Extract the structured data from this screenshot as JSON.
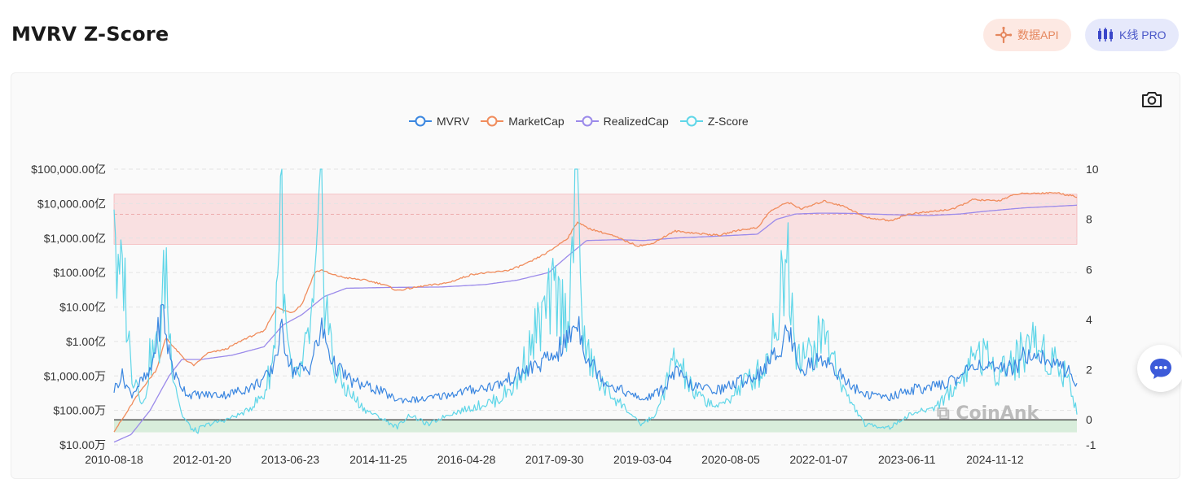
{
  "page": {
    "title": "MVRV Z-Score",
    "api_button": "数据API",
    "kline_button": "K线 PRO",
    "watermark": "CoinAnk"
  },
  "colors": {
    "mvrv": "#3a86e0",
    "marketcap": "#f08c5c",
    "realizedcap": "#9b8aea",
    "zscore": "#5fd6e8",
    "top_band": "#f8d7d8",
    "bottom_band": "#cfead3"
  },
  "icons": {
    "api": "api-plug-icon",
    "kline": "candlestick-icon",
    "camera": "camera-icon",
    "chat": "chat-bubble-icon"
  },
  "chart_data": {
    "type": "line",
    "legend": [
      "MVRV",
      "MarketCap",
      "RealizedCap",
      "Z-Score"
    ],
    "legend_position": "top-center",
    "grid": true,
    "x_ticks": [
      "2010-08-18",
      "2012-01-20",
      "2013-06-23",
      "2014-11-25",
      "2016-04-28",
      "2017-09-30",
      "2019-03-04",
      "2020-08-05",
      "2022-01-07",
      "2023-06-11",
      "2024-11-12"
    ],
    "x_range": [
      2010.63,
      2025.85
    ],
    "left_axis": {
      "scale": "log",
      "ticks": [
        "$10.00万",
        "$100.00万",
        "$1,000.00万",
        "$1.00亿",
        "$10.00亿",
        "$100.00亿",
        "$1,000.00亿",
        "$10,000.00亿",
        "$100,000.00亿"
      ],
      "range_usd": [
        100000,
        10000000000000
      ]
    },
    "right_axis": {
      "scale": "linear",
      "ticks": [
        "10",
        "8",
        "6",
        "4",
        "2",
        "0",
        "-1"
      ],
      "range": [
        -1,
        10
      ]
    },
    "bands": {
      "top": [
        7,
        9
      ],
      "top_midline": 8.2,
      "bottom": [
        -0.5,
        0
      ]
    },
    "series": [
      {
        "name": "MarketCap",
        "axis": "left",
        "x": [
          2010.63,
          2010.8,
          2010.95,
          2011.1,
          2011.3,
          2011.45,
          2011.6,
          2011.75,
          2011.9,
          2012.1,
          2012.4,
          2012.7,
          2013.0,
          2013.2,
          2013.3,
          2013.45,
          2013.6,
          2013.8,
          2013.92,
          2014.05,
          2014.3,
          2014.6,
          2014.9,
          2015.1,
          2015.5,
          2015.9,
          2016.3,
          2016.6,
          2016.9,
          2017.2,
          2017.5,
          2017.8,
          2017.96,
          2018.1,
          2018.5,
          2018.9,
          2019.1,
          2019.5,
          2019.8,
          2020.2,
          2020.5,
          2020.8,
          2021.0,
          2021.28,
          2021.5,
          2021.86,
          2022.2,
          2022.5,
          2022.9,
          2023.2,
          2023.6,
          2023.9,
          2024.2,
          2024.6,
          2024.9,
          2025.2,
          2025.5,
          2025.85
        ],
        "values": [
          250000,
          700000,
          2000000,
          5000000,
          15000000,
          130000000,
          60000000,
          30000000,
          20000000,
          45000000,
          60000000,
          120000000,
          200000000,
          1000000000,
          800000000,
          700000000,
          1200000000,
          10000000000,
          12000000000,
          9000000000,
          7000000000,
          6000000000,
          4500000000,
          3000000000,
          4000000000,
          5000000000,
          9000000000,
          10000000000,
          12000000000,
          20000000000,
          40000000000,
          100000000000,
          300000000000,
          200000000000,
          120000000000,
          60000000000,
          65000000000,
          160000000000,
          140000000000,
          120000000000,
          170000000000,
          200000000000,
          600000000000,
          1100000000000,
          700000000000,
          1200000000000,
          800000000000,
          400000000000,
          320000000000,
          500000000000,
          600000000000,
          700000000000,
          1300000000000,
          1200000000000,
          1900000000000,
          2000000000000,
          2100000000000,
          1600000000000
        ]
      },
      {
        "name": "RealizedCap",
        "axis": "left",
        "x": [
          2010.63,
          2010.9,
          2011.2,
          2011.5,
          2011.7,
          2012.0,
          2012.5,
          2013.0,
          2013.3,
          2013.6,
          2013.95,
          2014.3,
          2015.0,
          2015.8,
          2016.5,
          2017.0,
          2017.5,
          2017.8,
          2018.1,
          2018.6,
          2019.0,
          2019.5,
          2020.0,
          2020.8,
          2021.1,
          2021.4,
          2021.8,
          2022.3,
          2022.9,
          2023.5,
          2024.0,
          2024.4,
          2025.0,
          2025.85
        ],
        "values": [
          120000,
          200000,
          1000000,
          10000000,
          30000000,
          30000000,
          40000000,
          70000000,
          300000000,
          600000000,
          2000000000,
          3500000000,
          3700000000,
          3800000000,
          4500000000,
          6000000000,
          10000000000,
          30000000000,
          85000000000,
          90000000000,
          85000000000,
          100000000000,
          110000000000,
          130000000000,
          350000000000,
          500000000000,
          530000000000,
          520000000000,
          480000000000,
          450000000000,
          500000000000,
          600000000000,
          750000000000,
          900000000000
        ]
      },
      {
        "name": "MVRV",
        "axis": "right",
        "x": [
          2010.63,
          2010.75,
          2010.9,
          2011.05,
          2011.2,
          2011.4,
          2011.47,
          2011.6,
          2011.8,
          2012.0,
          2012.4,
          2012.8,
          2013.1,
          2013.28,
          2013.45,
          2013.7,
          2013.92,
          2014.1,
          2014.4,
          2014.8,
          2015.1,
          2015.5,
          2015.9,
          2016.3,
          2016.7,
          2017.1,
          2017.5,
          2017.75,
          2017.96,
          2018.1,
          2018.4,
          2018.8,
          2019.0,
          2019.3,
          2019.5,
          2019.8,
          2020.2,
          2020.5,
          2020.8,
          2021.1,
          2021.28,
          2021.5,
          2021.86,
          2022.2,
          2022.5,
          2022.9,
          2023.2,
          2023.6,
          2024.0,
          2024.25,
          2024.6,
          2024.9,
          2025.1,
          2025.4,
          2025.7,
          2025.85
        ],
        "values": [
          1.2,
          1.8,
          1.0,
          1.5,
          1.8,
          4.5,
          3.0,
          1.7,
          1.0,
          1.0,
          1.0,
          1.3,
          1.8,
          3.5,
          2.0,
          2.0,
          3.6,
          2.2,
          1.5,
          1.2,
          0.8,
          0.8,
          1.0,
          1.2,
          1.4,
          1.9,
          2.4,
          3.0,
          4.0,
          2.5,
          1.5,
          1.0,
          0.8,
          1.2,
          1.9,
          1.3,
          1.2,
          1.5,
          1.8,
          2.6,
          3.6,
          2.0,
          2.5,
          1.5,
          1.0,
          0.9,
          1.2,
          1.3,
          1.7,
          2.3,
          1.9,
          2.2,
          2.8,
          2.3,
          2.0,
          1.4
        ]
      },
      {
        "name": "Z-Score",
        "axis": "right",
        "x": [
          2010.63,
          2010.68,
          2010.78,
          2010.9,
          2011.0,
          2011.1,
          2011.2,
          2011.35,
          2011.45,
          2011.5,
          2011.6,
          2011.7,
          2011.9,
          2012.1,
          2012.4,
          2012.7,
          2013.0,
          2013.15,
          2013.28,
          2013.32,
          2013.45,
          2013.6,
          2013.8,
          2013.92,
          2013.95,
          2014.1,
          2014.3,
          2014.6,
          2014.9,
          2015.1,
          2015.3,
          2015.6,
          2015.9,
          2016.3,
          2016.7,
          2017.0,
          2017.3,
          2017.6,
          2017.8,
          2017.96,
          2018.05,
          2018.3,
          2018.7,
          2018.95,
          2019.2,
          2019.5,
          2019.8,
          2020.2,
          2020.6,
          2020.9,
          2021.1,
          2021.28,
          2021.4,
          2021.6,
          2021.86,
          2022.2,
          2022.5,
          2022.9,
          2023.2,
          2023.6,
          2024.0,
          2024.25,
          2024.6,
          2024.9,
          2025.1,
          2025.4,
          2025.7,
          2025.85
        ],
        "values": [
          10.0,
          5.0,
          6.0,
          2.0,
          1.5,
          0.5,
          2.5,
          3.0,
          6.5,
          3.5,
          1.5,
          0.2,
          -0.5,
          -0.2,
          0.0,
          0.3,
          1.0,
          2.5,
          10.0,
          4.0,
          1.5,
          2.0,
          4.5,
          9.5,
          5.5,
          2.0,
          1.2,
          0.4,
          0.0,
          -0.3,
          0.2,
          -0.2,
          0.2,
          0.5,
          0.8,
          1.5,
          3.5,
          5.0,
          4.0,
          10.0,
          3.0,
          1.5,
          0.5,
          -0.2,
          0.2,
          2.5,
          1.0,
          0.5,
          1.5,
          2.0,
          4.0,
          6.8,
          3.0,
          2.5,
          3.5,
          1.0,
          -0.2,
          -0.3,
          0.2,
          0.5,
          1.5,
          2.8,
          2.0,
          2.4,
          3.2,
          2.6,
          1.8,
          0.3
        ]
      }
    ]
  }
}
